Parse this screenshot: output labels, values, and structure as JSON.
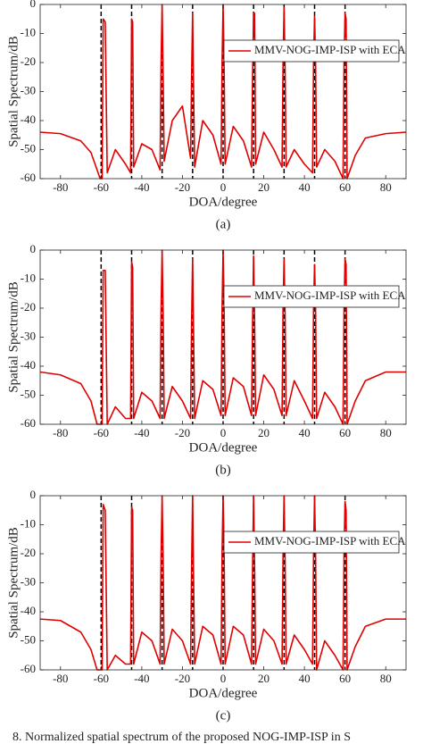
{
  "chart_data": [
    {
      "type": "line",
      "xlabel": "DOA/degree",
      "ylabel": "Spatial Spectrum/dB",
      "caption": "(a)",
      "x": [
        -90,
        -80,
        -70,
        -65,
        -62,
        -60.5,
        -60,
        -59.5,
        -59,
        -58,
        -57,
        -53,
        -48,
        -45.5,
        -45,
        -44.5,
        -44,
        -40,
        -35,
        -31,
        -30.5,
        -30,
        -29.5,
        -29,
        -25,
        -20,
        -16,
        -15.5,
        -15,
        -14.5,
        -14,
        -10,
        -5,
        -1,
        -0.5,
        0,
        0.5,
        1,
        5,
        10,
        14,
        14.5,
        15,
        15.5,
        16,
        20,
        25,
        29,
        29.5,
        30,
        30.5,
        31,
        35,
        40,
        44,
        44.5,
        45,
        45.5,
        46,
        50,
        55,
        59,
        59.5,
        60,
        60.5,
        61,
        65,
        70,
        80,
        90
      ],
      "series": [
        {
          "name": "MMV-NOG-IMP-ISP with ECA",
          "color": "#e00000",
          "values": [
            -44,
            -44.5,
            -47,
            -51,
            -57,
            -60,
            -60,
            -60,
            -5,
            -6,
            -58,
            -50,
            -55,
            -58,
            -5,
            -6,
            -56,
            -48,
            -50,
            -57,
            -20,
            0,
            -25,
            -54,
            -40,
            -35,
            -53,
            -25,
            -3,
            -30,
            -56,
            -40,
            -45,
            -55,
            -20,
            0,
            -22,
            -55,
            -42,
            -47,
            -56,
            -25,
            -3,
            -3,
            -55,
            -44,
            -50,
            -56,
            -20,
            -1,
            -22,
            -56,
            -50,
            -55,
            -58,
            -20,
            -4,
            -20,
            -56,
            -50,
            -54,
            -60,
            -20,
            -3,
            -5,
            -60,
            -52,
            -46,
            -44.5,
            -44
          ]
        }
      ],
      "reference_lines": [
        -60,
        -45,
        -30,
        -15,
        0,
        15,
        30,
        45,
        60
      ],
      "xlim": [
        -90,
        90
      ],
      "xticks": [
        -80,
        -60,
        -40,
        -20,
        0,
        20,
        40,
        60,
        80
      ],
      "ylim": [
        -60,
        0
      ],
      "yticks": [
        -60,
        -50,
        -40,
        -30,
        -20,
        -10,
        0
      ],
      "legend": "upper right"
    },
    {
      "type": "line",
      "xlabel": "DOA/degree",
      "ylabel": "Spatial Spectrum/dB",
      "caption": "(b)",
      "x": [
        -90,
        -80,
        -70,
        -65,
        -62,
        -60.5,
        -60,
        -59.5,
        -59,
        -58,
        -57,
        -53,
        -48,
        -45.5,
        -45,
        -44.5,
        -44,
        -40,
        -35,
        -31,
        -30.5,
        -30,
        -29.5,
        -29,
        -25,
        -20,
        -16,
        -15.5,
        -15,
        -14.5,
        -14,
        -10,
        -5,
        -1,
        -0.5,
        0,
        0.5,
        1,
        5,
        10,
        14,
        14.5,
        15,
        15.5,
        16,
        20,
        25,
        29,
        29.5,
        30,
        30.5,
        31,
        35,
        40,
        44,
        44.5,
        45,
        45.5,
        46,
        50,
        55,
        59,
        59.5,
        60,
        60.5,
        61,
        65,
        70,
        80,
        90
      ],
      "series": [
        {
          "name": "MMV-NOG-IMP-ISP with ECA",
          "color": "#e00000",
          "values": [
            -42,
            -43,
            -46,
            -52,
            -60,
            -60,
            -60,
            -60,
            -7,
            -7,
            -60,
            -54,
            -58,
            -58,
            -4,
            -6,
            -58,
            -49,
            -52,
            -58,
            -20,
            0,
            -22,
            -58,
            -47,
            -52,
            -58,
            -25,
            -3,
            -30,
            -58,
            -45,
            -48,
            -57,
            -20,
            0,
            -20,
            -57,
            -44,
            -47,
            -57,
            -25,
            -2,
            -25,
            -57,
            -43,
            -48,
            -57,
            -20,
            -3,
            -22,
            -57,
            -45,
            -52,
            -58,
            -20,
            -5,
            -20,
            -58,
            -49,
            -54,
            -60,
            -20,
            -3,
            -5,
            -60,
            -52,
            -45,
            -42,
            -42
          ]
        }
      ],
      "reference_lines": [
        -60,
        -45,
        -30,
        -15,
        0,
        15,
        30,
        45,
        60
      ],
      "xlim": [
        -90,
        90
      ],
      "xticks": [
        -80,
        -60,
        -40,
        -20,
        0,
        20,
        40,
        60,
        80
      ],
      "ylim": [
        -60,
        0
      ],
      "yticks": [
        -60,
        -50,
        -40,
        -30,
        -20,
        -10,
        0
      ],
      "legend": "upper right"
    },
    {
      "type": "line",
      "xlabel": "DOA/degree",
      "ylabel": "Spatial Spectrum/dB",
      "caption": "(c)",
      "x": [
        -90,
        -80,
        -70,
        -65,
        -62,
        -60.5,
        -60,
        -59.5,
        -59,
        -58,
        -57,
        -53,
        -48,
        -45.5,
        -45,
        -44.5,
        -44,
        -40,
        -35,
        -31,
        -30.5,
        -30,
        -29.5,
        -29,
        -25,
        -20,
        -16,
        -15.5,
        -15,
        -14.5,
        -14,
        -10,
        -5,
        -1,
        -0.5,
        0,
        0.5,
        1,
        5,
        10,
        14,
        14.5,
        15,
        15.5,
        16,
        20,
        25,
        29,
        29.5,
        30,
        30.5,
        31,
        35,
        40,
        44,
        44.5,
        45,
        45.5,
        46,
        50,
        55,
        59,
        59.5,
        60,
        60.5,
        61,
        65,
        70,
        80,
        90
      ],
      "series": [
        {
          "name": "MMV-NOG-IMP-ISP with ECA",
          "color": "#e00000",
          "values": [
            -42.5,
            -43,
            -47,
            -53,
            -60,
            -60,
            -60,
            -60,
            -3,
            -5,
            -60,
            -55,
            -58,
            -58,
            -4,
            -5,
            -58,
            -47,
            -50,
            -58,
            -20,
            0,
            -22,
            -58,
            -46,
            -50,
            -58,
            -25,
            0,
            -30,
            -58,
            -45,
            -48,
            -58,
            -20,
            0,
            -20,
            -58,
            -45,
            -48,
            -58,
            -25,
            0,
            -25,
            -58,
            -46,
            -50,
            -58,
            -20,
            0,
            -22,
            -58,
            -48,
            -53,
            -58,
            -20,
            0,
            -20,
            -60,
            -50,
            -55,
            -60,
            -20,
            -2,
            -5,
            -60,
            -52,
            -45,
            -42.5,
            -42.5
          ]
        }
      ],
      "reference_lines": [
        -60,
        -45,
        -30,
        -15,
        0,
        15,
        30,
        45,
        60
      ],
      "xlim": [
        -90,
        90
      ],
      "xticks": [
        -80,
        -60,
        -40,
        -20,
        0,
        20,
        40,
        60,
        80
      ],
      "ylim": [
        -60,
        0
      ],
      "yticks": [
        -60,
        -50,
        -40,
        -30,
        -20,
        -10,
        0
      ],
      "legend": "upper right"
    }
  ],
  "figure_caption": "8.   Normalized spatial spectrum of the proposed NOG-IMP-ISP in S"
}
